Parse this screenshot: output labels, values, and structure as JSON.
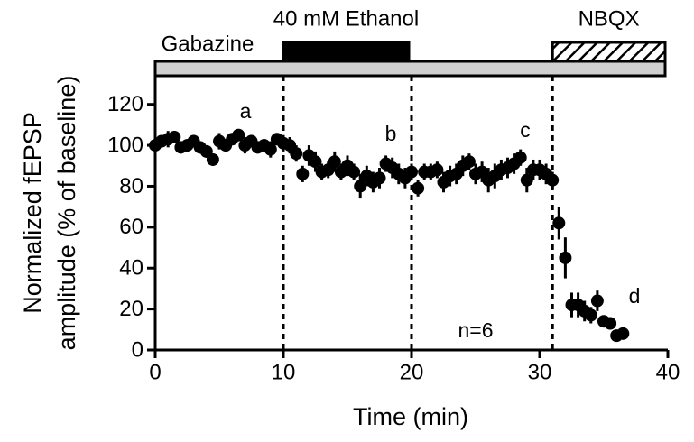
{
  "chart_data": {
    "type": "scatter",
    "xlabel": "Time (min)",
    "ylabel": [
      "Normalized fEPSP",
      "amplitude (% of baseline)"
    ],
    "x": [
      0,
      0.5,
      1,
      1.5,
      2,
      2.5,
      3,
      3.5,
      4,
      4.5,
      5,
      5.5,
      6,
      6.5,
      7,
      7.5,
      8,
      8.5,
      9,
      9.5,
      10,
      10.5,
      11,
      11.5,
      12,
      12.5,
      13,
      13.5,
      14,
      14.5,
      15,
      15.5,
      16,
      16.5,
      17,
      17.5,
      18,
      18.5,
      19,
      19.5,
      20,
      20.5,
      21,
      21.5,
      22,
      22.5,
      23,
      23.5,
      24,
      24.5,
      25,
      25.5,
      26,
      26.5,
      27,
      27.5,
      28,
      28.5,
      29,
      29.5,
      30,
      30.5,
      31,
      31.5,
      32,
      32.5,
      33,
      33.5,
      34,
      34.5,
      35,
      35.5,
      36,
      36.5
    ],
    "values": [
      100,
      102,
      103,
      104,
      99,
      100,
      102,
      99,
      97,
      93,
      102,
      100,
      103,
      105,
      100,
      102,
      99,
      100,
      98,
      103,
      101,
      100,
      96,
      86,
      95,
      92,
      87,
      88,
      92,
      87,
      90,
      87,
      80,
      85,
      82,
      84,
      91,
      89,
      86,
      84,
      87,
      79,
      87,
      87,
      88,
      82,
      85,
      86,
      90,
      92,
      86,
      87,
      83,
      85,
      88,
      89,
      91,
      94,
      83,
      88,
      88,
      86,
      83,
      62,
      45,
      22,
      22,
      19,
      17,
      24,
      14,
      13,
      7,
      8
    ],
    "errors": [
      3,
      3,
      4,
      3,
      3,
      3,
      3,
      3,
      3,
      3,
      4,
      3,
      3,
      3,
      4,
      3,
      3,
      3,
      4,
      3,
      4,
      4,
      4,
      4,
      5,
      5,
      4,
      4,
      5,
      4,
      5,
      4,
      6,
      5,
      5,
      5,
      4,
      5,
      5,
      5,
      4,
      4,
      4,
      4,
      4,
      5,
      5,
      5,
      5,
      4,
      5,
      5,
      6,
      6,
      5,
      5,
      5,
      4,
      6,
      5,
      5,
      5,
      4,
      8,
      10,
      6,
      6,
      5,
      4,
      5,
      3,
      3,
      2,
      2
    ],
    "color": "#000000",
    "xlim": [
      0,
      40
    ],
    "xticks": [
      0,
      10,
      20,
      30,
      40
    ],
    "ylim": [
      0,
      130
    ],
    "yticks": [
      0,
      20,
      40,
      60,
      80,
      100,
      120
    ],
    "event_lines": [
      10,
      20,
      31
    ],
    "treatments": [
      {
        "label": "Gabazine",
        "start": 0,
        "end": 40
      },
      {
        "label": "40 mM Ethanol",
        "start": 10,
        "end": 20
      },
      {
        "label": "NBQX",
        "start": 31,
        "end": 40
      }
    ],
    "annotations": [
      "a",
      "b",
      "c",
      "d",
      "n=6"
    ]
  }
}
